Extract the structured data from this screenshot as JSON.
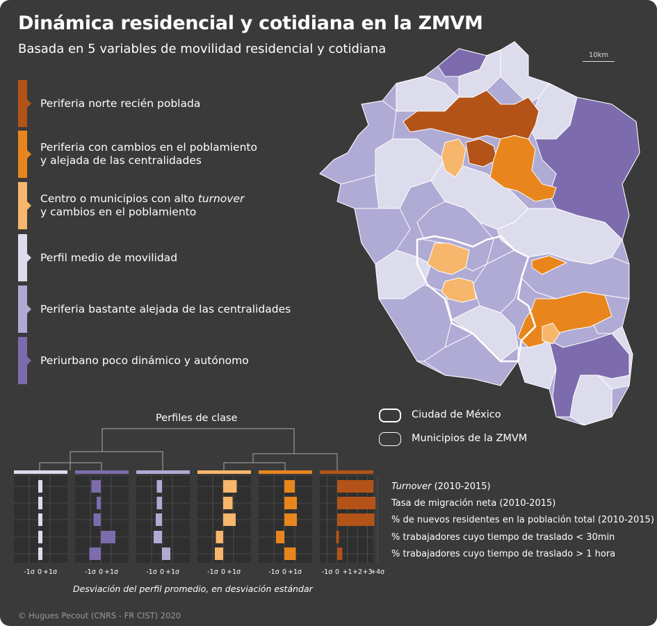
{
  "title": "Dinámica residencial y cotidiana en la ZMVM",
  "subtitle": "Basada en 5 variables de movilidad residencial y cotidiana",
  "scale_label": "10km",
  "colors": {
    "c1": "#b35317",
    "c2": "#e8861d",
    "c3": "#f6b66b",
    "c4": "#dcdcec",
    "c5": "#b0abd4",
    "c6": "#7d6cad",
    "background": "#3a3a3a"
  },
  "classes": [
    {
      "label": "Periferia norte recién poblada",
      "color": "#b35317"
    },
    {
      "label": "Periferia con cambios en el poblamiento",
      "label2": "y alejada de las centralidades",
      "color": "#e8861d"
    },
    {
      "label": "Centro o municipios con alto ",
      "label_em": "turnover",
      "label2": "y cambios en el poblamiento",
      "color": "#f6b66b"
    },
    {
      "label": "Perfil medio de movilidad",
      "color": "#dcdcec"
    },
    {
      "label": "Periferia bastante alejada de las centralidades",
      "color": "#b0abd4"
    },
    {
      "label": "Periurbano poco dinámico y autónomo",
      "color": "#7d6cad"
    }
  ],
  "map_legend": {
    "cdmx": "Ciudad de México",
    "zmvm": "Municipios de la ZMVM"
  },
  "profiles": {
    "title": "Perfiles de clase",
    "variables": [
      {
        "label": "Turnover",
        "suffix": " (2010-2015)",
        "italic": true
      },
      {
        "label": "Tasa de migración neta (2010-2015)"
      },
      {
        "label": "% de nuevos residentes en la población total (2010-2015)"
      },
      {
        "label": "% trabajadores cuyo tiempo de traslado < 30min"
      },
      {
        "label": "% trabajadores cuyo tiempo de traslado > 1 hora"
      }
    ],
    "panels": [
      {
        "class": "Perfil medio de movilidad",
        "color": "#dcdcec",
        "values": [
          0.05,
          0.05,
          0.05,
          0.05,
          0.05
        ],
        "ticks": [
          "-1σ",
          "0",
          "+1σ"
        ]
      },
      {
        "class": "Periurbano poco dinámico y autónomo",
        "color": "#7d6cad",
        "values": [
          -0.9,
          -0.4,
          -0.7,
          1.4,
          -1.1
        ],
        "ticks": [
          "-1σ",
          "0",
          "+1σ"
        ]
      },
      {
        "class": "Periferia bastante alejada de las centralidades",
        "color": "#b0abd4",
        "values": [
          -0.5,
          -0.5,
          -0.6,
          -0.8,
          0.8
        ],
        "ticks": [
          "-1σ",
          "0",
          "+1σ"
        ]
      },
      {
        "class": "Centro o municipios con alto turnover",
        "color": "#f6b66b",
        "values": [
          1.3,
          0.9,
          1.2,
          -0.7,
          -0.8
        ],
        "ticks": [
          "-1σ",
          "0",
          "+1σ"
        ]
      },
      {
        "class": "Periferia con cambios en el poblamiento",
        "color": "#e8861d",
        "values": [
          1.0,
          1.2,
          1.2,
          -0.8,
          1.1
        ],
        "ticks": [
          "-1σ",
          "0",
          "+1σ"
        ]
      },
      {
        "class": "Periferia norte recién poblada",
        "color": "#b35317",
        "values": [
          3.6,
          3.8,
          3.7,
          -0.1,
          0.5
        ],
        "ticks": [
          "-1σ",
          "0",
          "+1",
          "+2",
          "+3",
          "+4σ"
        ]
      }
    ],
    "axis_title": "Desviación del perfil promedio, en desviación estándar"
  },
  "credit": "© Hugues Pecout (CNRS - FR CIST) 2020"
}
